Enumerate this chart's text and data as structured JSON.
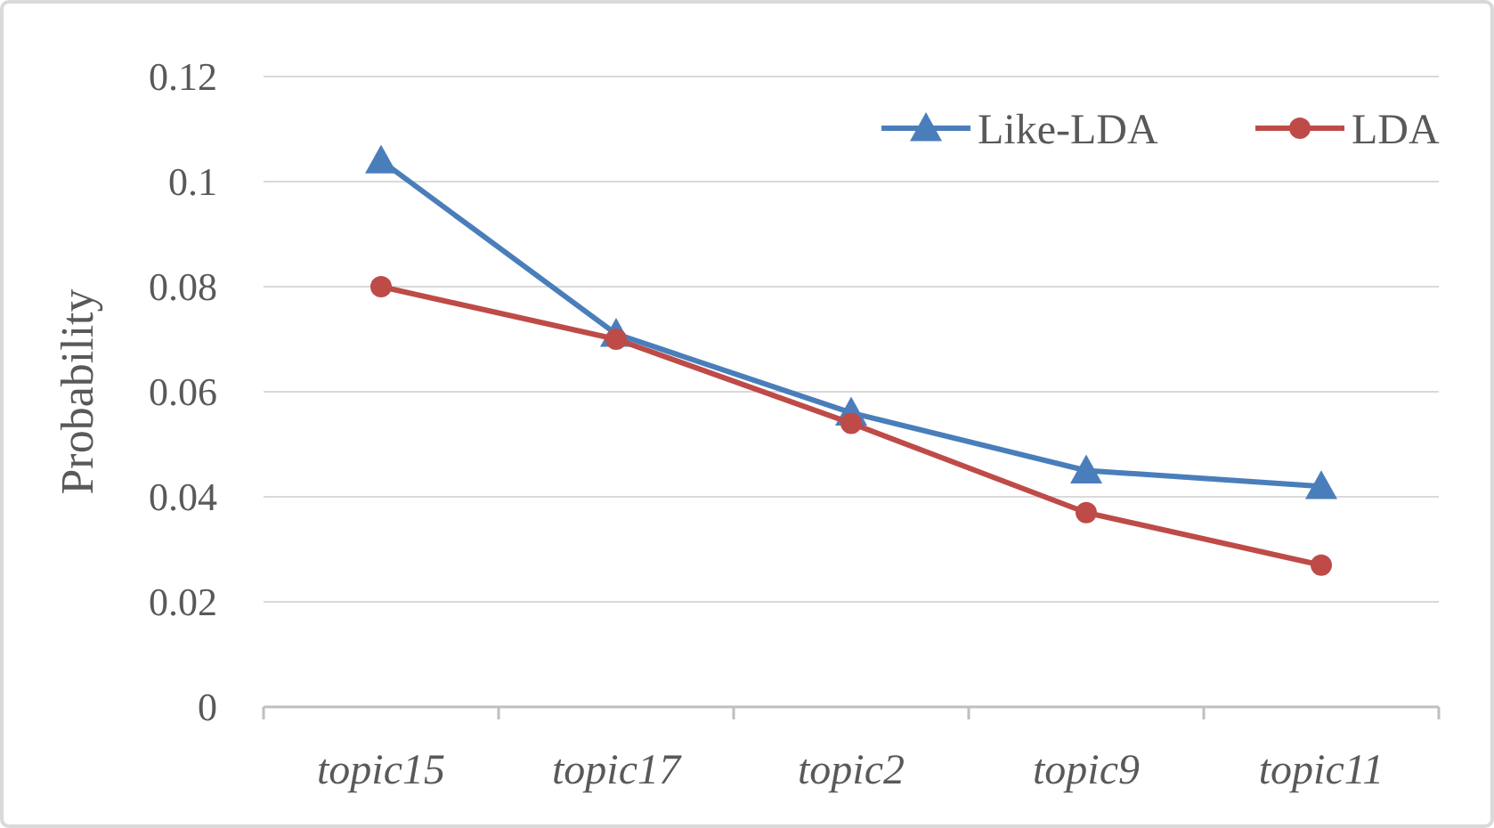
{
  "chart_data": {
    "type": "line",
    "ylabel": "Probability",
    "categories": [
      "topic15",
      "topic17",
      "topic2",
      "topic9",
      "topic11"
    ],
    "series": [
      {
        "name": "Like-LDA",
        "color": "#4a7ebb",
        "marker": "triangle",
        "values": [
          0.104,
          0.071,
          0.056,
          0.045,
          0.042
        ]
      },
      {
        "name": "LDA",
        "color": "#be4b48",
        "marker": "circle",
        "values": [
          0.08,
          0.07,
          0.054,
          0.037,
          0.027
        ]
      }
    ],
    "ylim": [
      0,
      0.12
    ],
    "yticks": [
      0,
      0.02,
      0.04,
      0.06,
      0.08,
      {
        "value": 0.1,
        "label": "0.1"
      },
      0.12
    ],
    "grid": "y",
    "legend": "top right",
    "line_style": "solid"
  }
}
